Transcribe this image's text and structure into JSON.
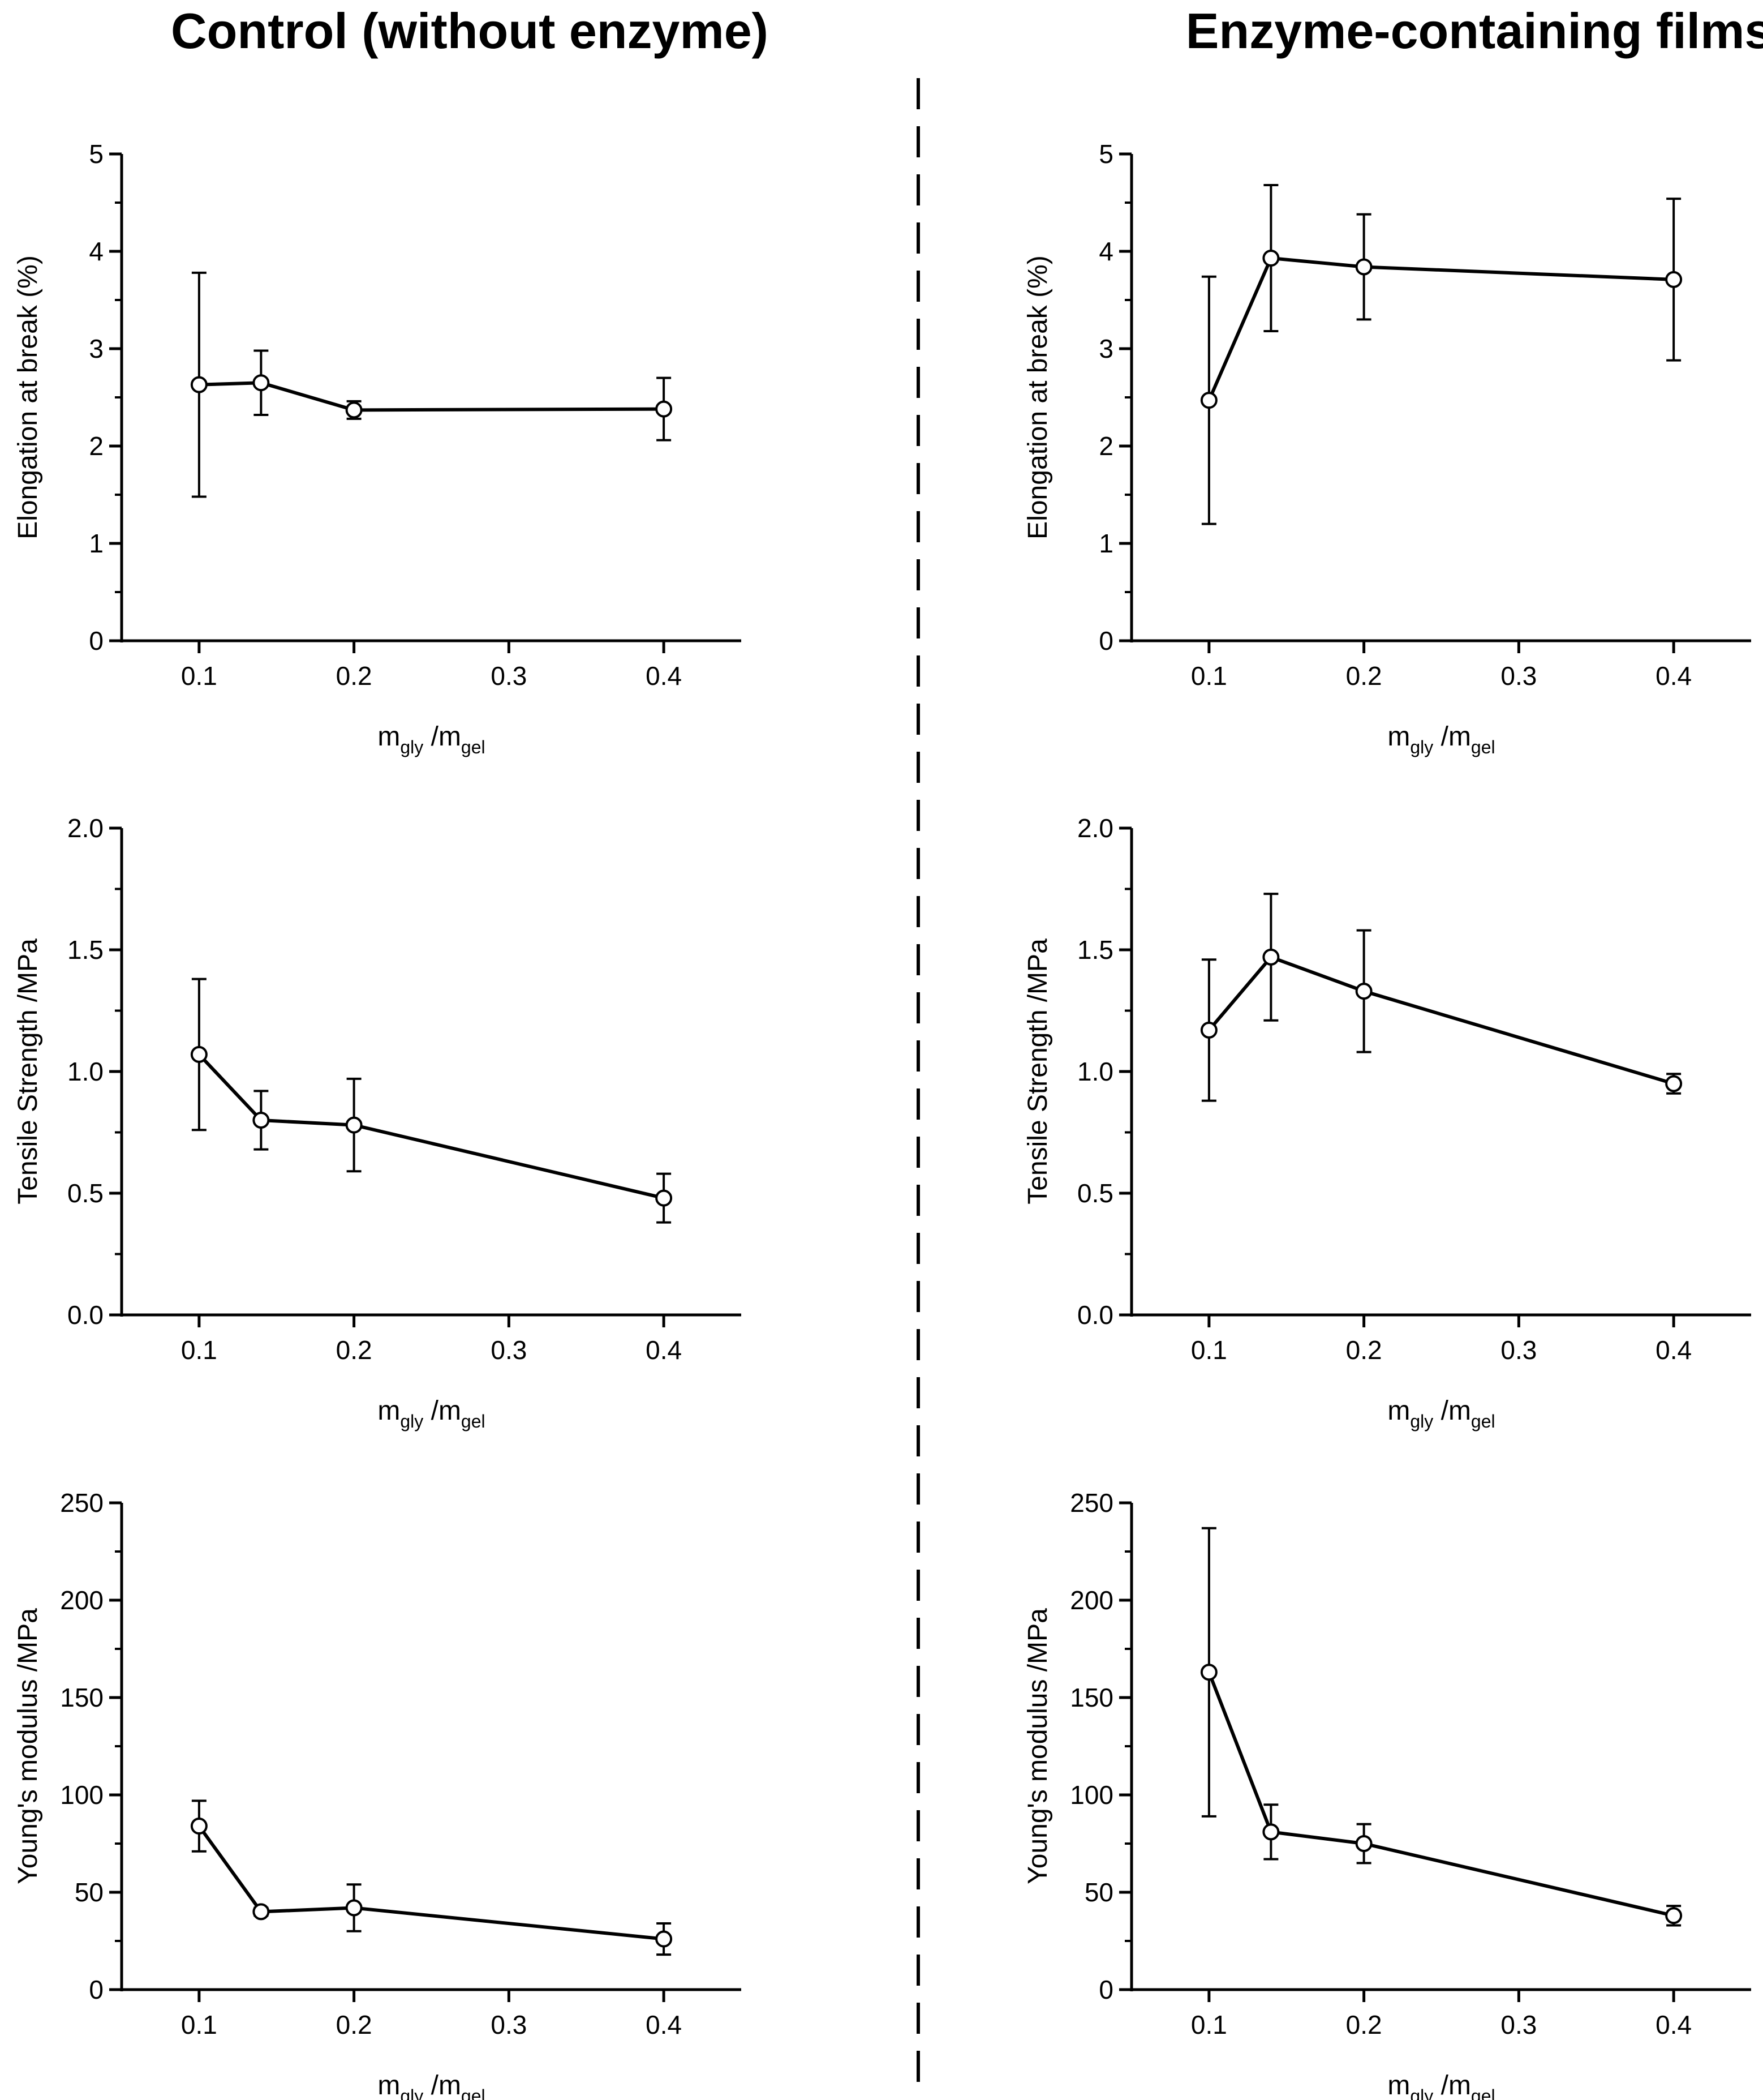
{
  "columns": [
    {
      "title": "Control (without enzyme)"
    },
    {
      "title": "Enzyme-containing films"
    }
  ],
  "chart_data": [
    {
      "type": "line",
      "column": 0,
      "row": 0,
      "ylabel": "Elongation at break (%)",
      "xlabel": {
        "main1": "m",
        "sub1": "gly",
        "main2": " /m",
        "sub2": "gel"
      },
      "xlim": [
        0.05,
        0.45
      ],
      "ylim": [
        0,
        5
      ],
      "xticks": [
        0.1,
        0.2,
        0.3,
        0.4
      ],
      "xtick_labels": [
        "0.1",
        "0.2",
        "0.3",
        "0.4"
      ],
      "yticks": [
        0,
        1,
        2,
        3,
        4,
        5
      ],
      "ytick_labels": [
        "0",
        "1",
        "2",
        "3",
        "4",
        "5"
      ],
      "x": [
        0.1,
        0.14,
        0.2,
        0.4
      ],
      "y": [
        2.63,
        2.65,
        2.37,
        2.38
      ],
      "err": [
        1.15,
        0.33,
        0.09,
        0.32
      ]
    },
    {
      "type": "line",
      "column": 1,
      "row": 0,
      "ylabel": "Elongation at break (%)",
      "xlabel": {
        "main1": "m",
        "sub1": "gly",
        "main2": " /m",
        "sub2": "gel"
      },
      "xlim": [
        0.05,
        0.45
      ],
      "ylim": [
        0,
        5
      ],
      "xticks": [
        0.1,
        0.2,
        0.3,
        0.4
      ],
      "xtick_labels": [
        "0.1",
        "0.2",
        "0.3",
        "0.4"
      ],
      "yticks": [
        0,
        1,
        2,
        3,
        4,
        5
      ],
      "ytick_labels": [
        "0",
        "1",
        "2",
        "3",
        "4",
        "5"
      ],
      "x": [
        0.1,
        0.14,
        0.2,
        0.4
      ],
      "y": [
        2.47,
        3.93,
        3.84,
        3.71
      ],
      "err": [
        1.27,
        0.75,
        0.54,
        0.83
      ]
    },
    {
      "type": "line",
      "column": 0,
      "row": 1,
      "ylabel": "Tensile Strength /MPa",
      "xlabel": {
        "main1": "m",
        "sub1": "gly",
        "main2": " /m",
        "sub2": "gel"
      },
      "xlim": [
        0.05,
        0.45
      ],
      "ylim": [
        0,
        2
      ],
      "xticks": [
        0.1,
        0.2,
        0.3,
        0.4
      ],
      "xtick_labels": [
        "0.1",
        "0.2",
        "0.3",
        "0.4"
      ],
      "yticks": [
        0,
        0.5,
        1,
        1.5,
        2
      ],
      "ytick_labels": [
        "0.0",
        "0.5",
        "1.0",
        "1.5",
        "2.0"
      ],
      "x": [
        0.1,
        0.14,
        0.2,
        0.4
      ],
      "y": [
        1.07,
        0.8,
        0.78,
        0.48
      ],
      "err": [
        0.31,
        0.12,
        0.19,
        0.1
      ]
    },
    {
      "type": "line",
      "column": 1,
      "row": 1,
      "ylabel": "Tensile Strength /MPa",
      "xlabel": {
        "main1": "m",
        "sub1": "gly",
        "main2": " /m",
        "sub2": "gel"
      },
      "xlim": [
        0.05,
        0.45
      ],
      "ylim": [
        0,
        2
      ],
      "xticks": [
        0.1,
        0.2,
        0.3,
        0.4
      ],
      "xtick_labels": [
        "0.1",
        "0.2",
        "0.3",
        "0.4"
      ],
      "yticks": [
        0,
        0.5,
        1,
        1.5,
        2
      ],
      "ytick_labels": [
        "0.0",
        "0.5",
        "1.0",
        "1.5",
        "2.0"
      ],
      "x": [
        0.1,
        0.14,
        0.2,
        0.4
      ],
      "y": [
        1.17,
        1.47,
        1.33,
        0.95
      ],
      "err": [
        0.29,
        0.26,
        0.25,
        0.04
      ]
    },
    {
      "type": "line",
      "column": 0,
      "row": 2,
      "ylabel": "Young's modulus /MPa",
      "xlabel": {
        "main1": "m",
        "sub1": "gly",
        "main2": " /m",
        "sub2": "gel"
      },
      "xlim": [
        0.05,
        0.45
      ],
      "ylim": [
        0,
        250
      ],
      "xticks": [
        0.1,
        0.2,
        0.3,
        0.4
      ],
      "xtick_labels": [
        "0.1",
        "0.2",
        "0.3",
        "0.4"
      ],
      "yticks": [
        0,
        50,
        100,
        150,
        200,
        250
      ],
      "ytick_labels": [
        "0",
        "50",
        "100",
        "150",
        "200",
        "250"
      ],
      "x": [
        0.1,
        0.14,
        0.2,
        0.4
      ],
      "y": [
        84,
        40,
        42,
        26
      ],
      "err": [
        13,
        2,
        12,
        8
      ]
    },
    {
      "type": "line",
      "column": 1,
      "row": 2,
      "ylabel": "Young's modulus /MPa",
      "xlabel": {
        "main1": "m",
        "sub1": "gly",
        "main2": " /m",
        "sub2": "gel"
      },
      "xlim": [
        0.05,
        0.45
      ],
      "ylim": [
        0,
        250
      ],
      "xticks": [
        0.1,
        0.2,
        0.3,
        0.4
      ],
      "xtick_labels": [
        "0.1",
        "0.2",
        "0.3",
        "0.4"
      ],
      "yticks": [
        0,
        50,
        100,
        150,
        200,
        250
      ],
      "ytick_labels": [
        "0",
        "50",
        "100",
        "150",
        "200",
        "250"
      ],
      "x": [
        0.1,
        0.14,
        0.2,
        0.4
      ],
      "y": [
        163,
        81,
        75,
        38
      ],
      "err": [
        74,
        14,
        10,
        5
      ]
    }
  ]
}
